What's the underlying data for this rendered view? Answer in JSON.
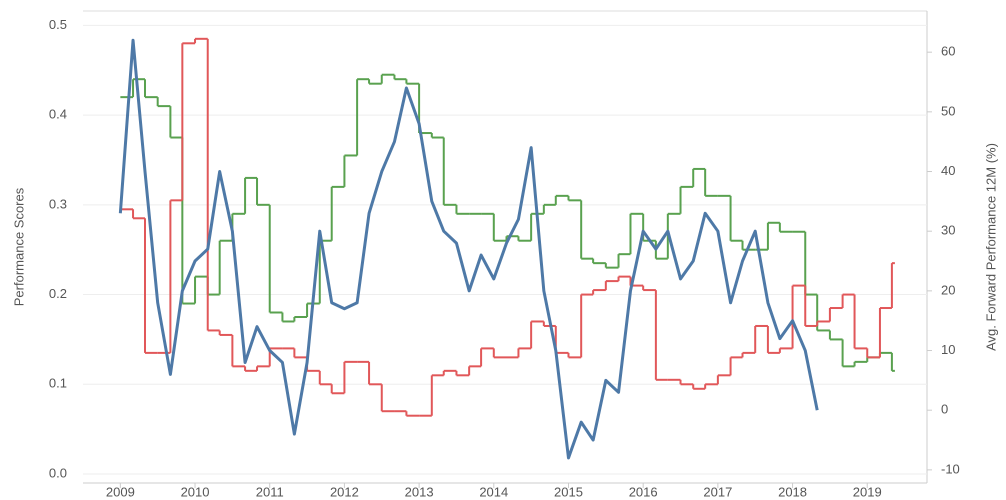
{
  "chart_data": {
    "type": "line",
    "y_label": "Performance Scores",
    "y2_label": "Avg. Forward Performance 12M (%)",
    "x": [
      2009,
      2009.17,
      2009.33,
      2009.5,
      2009.67,
      2009.83,
      2010,
      2010.17,
      2010.33,
      2010.5,
      2010.67,
      2010.83,
      2011,
      2011.17,
      2011.33,
      2011.5,
      2011.67,
      2011.83,
      2012,
      2012.17,
      2012.33,
      2012.5,
      2012.67,
      2012.83,
      2013,
      2013.17,
      2013.33,
      2013.5,
      2013.67,
      2013.83,
      2014,
      2014.17,
      2014.33,
      2014.5,
      2014.67,
      2014.83,
      2015,
      2015.17,
      2015.33,
      2015.5,
      2015.67,
      2015.83,
      2016,
      2016.17,
      2016.33,
      2016.5,
      2016.67,
      2016.83,
      2017,
      2017.17,
      2017.33,
      2017.5,
      2017.67,
      2017.83,
      2018,
      2018.17,
      2018.33,
      2018.5,
      2018.67,
      2018.83,
      2019,
      2019.17,
      2019.33
    ],
    "xlim": [
      2008.5,
      2019.8
    ],
    "xticks": [
      2009,
      2010,
      2011,
      2012,
      2013,
      2014,
      2015,
      2016,
      2017,
      2018,
      2019
    ],
    "ylim": [
      -0.01,
      0.516
    ],
    "yticks": [
      {
        "value": 0,
        "label": "0.0"
      },
      0.1,
      0.2,
      0.3,
      0.4,
      0.5
    ],
    "y2lim": [
      -12.2,
      66.9
    ],
    "y2ticks": [
      -10,
      0,
      10,
      20,
      30,
      40,
      50,
      60
    ],
    "grid": true,
    "series": [
      {
        "color": "#59a14f",
        "step": true,
        "values": [
          0.42,
          0.44,
          0.42,
          0.41,
          0.375,
          0.19,
          0.22,
          0.2,
          0.26,
          0.29,
          0.33,
          0.3,
          0.18,
          0.17,
          0.175,
          0.19,
          0.26,
          0.32,
          0.355,
          0.44,
          0.435,
          0.445,
          0.44,
          0.435,
          0.38,
          0.375,
          0.3,
          0.29,
          0.29,
          0.29,
          0.26,
          0.265,
          0.26,
          0.29,
          0.3,
          0.31,
          0.305,
          0.24,
          0.235,
          0.23,
          0.245,
          0.29,
          0.26,
          0.24,
          0.29,
          0.32,
          0.34,
          0.31,
          0.31,
          0.26,
          0.25,
          0.25,
          0.28,
          0.27,
          0.27,
          0.2,
          0.16,
          0.15,
          0.12,
          0.125,
          0.13,
          0.135,
          0.115
        ]
      },
      {
        "color": "#e15759",
        "step": true,
        "values": [
          0.295,
          0.285,
          0.135,
          0.135,
          0.305,
          0.48,
          0.485,
          0.16,
          0.155,
          0.12,
          0.115,
          0.12,
          0.14,
          0.14,
          0.13,
          0.115,
          0.1,
          0.09,
          0.125,
          0.125,
          0.1,
          0.07,
          0.07,
          0.065,
          0.065,
          0.11,
          0.115,
          0.11,
          0.12,
          0.14,
          0.13,
          0.13,
          0.14,
          0.17,
          0.165,
          0.135,
          0.13,
          0.2,
          0.205,
          0.215,
          0.22,
          0.21,
          0.205,
          0.105,
          0.105,
          0.1,
          0.095,
          0.1,
          0.11,
          0.13,
          0.135,
          0.165,
          0.135,
          0.14,
          0.21,
          0.165,
          0.17,
          0.185,
          0.2,
          0.14,
          0.13,
          0.185,
          0.235
        ]
      },
      {
        "color": "#4e79a7",
        "axis": "y2",
        "values": [
          33,
          62,
          40,
          18,
          6,
          20,
          25,
          27,
          40,
          30,
          8,
          14,
          10,
          8,
          -4,
          8,
          30,
          18,
          17,
          18,
          33,
          40,
          45,
          54,
          48,
          35,
          30,
          28,
          20,
          26,
          22,
          28,
          32,
          44,
          20,
          10,
          -8,
          -2,
          -5,
          5,
          3,
          20,
          30,
          27,
          30,
          22,
          25,
          33,
          30,
          18,
          25,
          30,
          18,
          12,
          15,
          10,
          0,
          null,
          null,
          null,
          null,
          null,
          null
        ]
      }
    ]
  }
}
